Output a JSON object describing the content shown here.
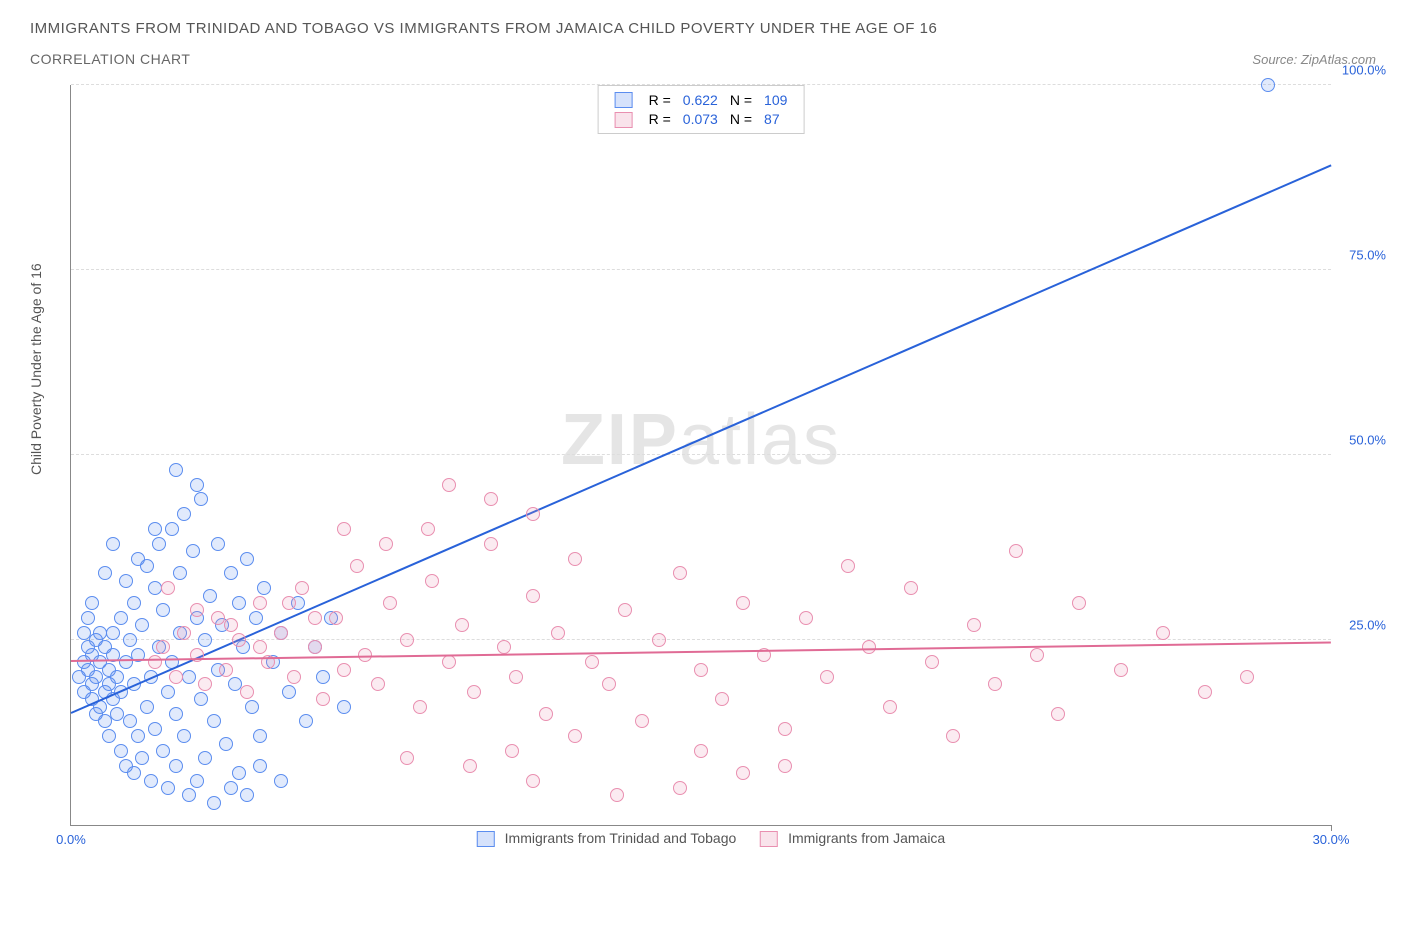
{
  "title": "IMMIGRANTS FROM TRINIDAD AND TOBAGO VS IMMIGRANTS FROM JAMAICA CHILD POVERTY UNDER THE AGE OF 16",
  "subtitle": "CORRELATION CHART",
  "source_label": "Source:",
  "source_name": "ZipAtlas.com",
  "watermark_a": "ZIP",
  "watermark_b": "atlas",
  "yaxis_title": "Child Poverty Under the Age of 16",
  "chart": {
    "type": "scatter",
    "background_color": "#ffffff",
    "grid_color": "#dddddd",
    "axis_color": "#888888",
    "xlim": [
      0,
      30
    ],
    "ylim": [
      0,
      100
    ],
    "xtick_positions": [
      0,
      30
    ],
    "xtick_labels": [
      "0.0%",
      "30.0%"
    ],
    "ytick_positions": [
      25,
      50,
      75,
      100
    ],
    "ytick_labels": [
      "25.0%",
      "50.0%",
      "75.0%",
      "100.0%"
    ],
    "ytick_color": "#2962d9",
    "xtick_color": "#2962d9",
    "marker_radius": 7,
    "marker_border_width": 1.2,
    "marker_fill_opacity": 0.18,
    "series": [
      {
        "name": "Immigrants from Trinidad and Tobago",
        "color_border": "#5b8def",
        "color_fill": "#5b8def",
        "R": "0.622",
        "N": "109",
        "trend": {
          "x1": 0,
          "y1": 15,
          "x2": 30,
          "y2": 89,
          "color": "#2962d9",
          "width": 2
        },
        "points": [
          [
            0.2,
            20
          ],
          [
            0.3,
            22
          ],
          [
            0.3,
            18
          ],
          [
            0.4,
            24
          ],
          [
            0.4,
            21
          ],
          [
            0.5,
            19
          ],
          [
            0.5,
            17
          ],
          [
            0.5,
            23
          ],
          [
            0.6,
            25
          ],
          [
            0.6,
            20
          ],
          [
            0.6,
            15
          ],
          [
            0.7,
            16
          ],
          [
            0.7,
            22
          ],
          [
            0.7,
            26
          ],
          [
            0.8,
            18
          ],
          [
            0.8,
            14
          ],
          [
            0.8,
            24
          ],
          [
            0.9,
            19
          ],
          [
            0.9,
            21
          ],
          [
            0.9,
            12
          ],
          [
            1.0,
            17
          ],
          [
            1.0,
            23
          ],
          [
            1.0,
            26
          ],
          [
            1.1,
            15
          ],
          [
            1.1,
            20
          ],
          [
            1.2,
            28
          ],
          [
            1.2,
            10
          ],
          [
            1.2,
            18
          ],
          [
            1.3,
            22
          ],
          [
            1.3,
            8
          ],
          [
            1.4,
            25
          ],
          [
            1.4,
            14
          ],
          [
            1.5,
            30
          ],
          [
            1.5,
            19
          ],
          [
            1.5,
            7
          ],
          [
            1.6,
            12
          ],
          [
            1.6,
            23
          ],
          [
            1.7,
            27
          ],
          [
            1.7,
            9
          ],
          [
            1.8,
            35
          ],
          [
            1.8,
            16
          ],
          [
            1.9,
            20
          ],
          [
            1.9,
            6
          ],
          [
            2.0,
            32
          ],
          [
            2.0,
            13
          ],
          [
            2.1,
            24
          ],
          [
            2.1,
            38
          ],
          [
            2.2,
            10
          ],
          [
            2.2,
            29
          ],
          [
            2.3,
            18
          ],
          [
            2.3,
            5
          ],
          [
            2.4,
            40
          ],
          [
            2.4,
            22
          ],
          [
            2.5,
            15
          ],
          [
            2.5,
            8
          ],
          [
            2.6,
            34
          ],
          [
            2.6,
            26
          ],
          [
            2.7,
            42
          ],
          [
            2.7,
            12
          ],
          [
            2.8,
            20
          ],
          [
            2.8,
            4
          ],
          [
            2.9,
            37
          ],
          [
            3.0,
            28
          ],
          [
            3.0,
            6
          ],
          [
            3.1,
            44
          ],
          [
            3.1,
            17
          ],
          [
            3.2,
            25
          ],
          [
            3.2,
            9
          ],
          [
            3.3,
            31
          ],
          [
            3.4,
            14
          ],
          [
            3.4,
            3
          ],
          [
            3.5,
            38
          ],
          [
            3.5,
            21
          ],
          [
            3.6,
            27
          ],
          [
            3.7,
            11
          ],
          [
            3.8,
            34
          ],
          [
            3.9,
            19
          ],
          [
            4.0,
            30
          ],
          [
            4.0,
            7
          ],
          [
            4.1,
            24
          ],
          [
            4.2,
            36
          ],
          [
            4.3,
            16
          ],
          [
            4.4,
            28
          ],
          [
            4.5,
            12
          ],
          [
            4.6,
            32
          ],
          [
            4.8,
            22
          ],
          [
            5.0,
            26
          ],
          [
            5.2,
            18
          ],
          [
            5.4,
            30
          ],
          [
            5.6,
            14
          ],
          [
            5.8,
            24
          ],
          [
            6.0,
            20
          ],
          [
            6.2,
            28
          ],
          [
            6.5,
            16
          ],
          [
            2.5,
            48
          ],
          [
            1.0,
            38
          ],
          [
            0.5,
            30
          ],
          [
            0.4,
            28
          ],
          [
            0.3,
            26
          ],
          [
            1.3,
            33
          ],
          [
            1.6,
            36
          ],
          [
            2.0,
            40
          ],
          [
            3.0,
            46
          ],
          [
            0.8,
            34
          ],
          [
            4.5,
            8
          ],
          [
            5.0,
            6
          ],
          [
            3.8,
            5
          ],
          [
            4.2,
            4
          ],
          [
            28.5,
            100
          ]
        ]
      },
      {
        "name": "Immigrants from Jamaica",
        "color_border": "#e98fb0",
        "color_fill": "#e98fb0",
        "R": "0.073",
        "N": "87",
        "trend": {
          "x1": 0,
          "y1": 22,
          "x2": 30,
          "y2": 24.5,
          "color": "#e06b95",
          "width": 2
        },
        "points": [
          [
            2.0,
            22
          ],
          [
            2.2,
            24
          ],
          [
            2.5,
            20
          ],
          [
            2.7,
            26
          ],
          [
            3.0,
            23
          ],
          [
            3.2,
            19
          ],
          [
            3.5,
            28
          ],
          [
            3.7,
            21
          ],
          [
            4.0,
            25
          ],
          [
            4.2,
            18
          ],
          [
            4.5,
            30
          ],
          [
            4.7,
            22
          ],
          [
            5.0,
            26
          ],
          [
            5.3,
            20
          ],
          [
            5.5,
            32
          ],
          [
            5.8,
            24
          ],
          [
            6.0,
            17
          ],
          [
            6.3,
            28
          ],
          [
            6.5,
            21
          ],
          [
            6.8,
            35
          ],
          [
            7.0,
            23
          ],
          [
            7.3,
            19
          ],
          [
            7.6,
            30
          ],
          [
            8.0,
            25
          ],
          [
            8.3,
            16
          ],
          [
            8.6,
            33
          ],
          [
            9.0,
            22
          ],
          [
            9.3,
            27
          ],
          [
            9.6,
            18
          ],
          [
            10.0,
            38
          ],
          [
            10.3,
            24
          ],
          [
            10.6,
            20
          ],
          [
            11.0,
            31
          ],
          [
            11.3,
            15
          ],
          [
            11.6,
            26
          ],
          [
            12.0,
            36
          ],
          [
            12.4,
            22
          ],
          [
            12.8,
            19
          ],
          [
            13.2,
            29
          ],
          [
            13.6,
            14
          ],
          [
            14.0,
            25
          ],
          [
            14.5,
            34
          ],
          [
            15.0,
            21
          ],
          [
            15.5,
            17
          ],
          [
            16.0,
            30
          ],
          [
            16.5,
            23
          ],
          [
            17.0,
            13
          ],
          [
            17.5,
            28
          ],
          [
            18.0,
            20
          ],
          [
            18.5,
            35
          ],
          [
            19.0,
            24
          ],
          [
            19.5,
            16
          ],
          [
            20.0,
            32
          ],
          [
            20.5,
            22
          ],
          [
            21.0,
            12
          ],
          [
            21.5,
            27
          ],
          [
            22.0,
            19
          ],
          [
            22.5,
            37
          ],
          [
            23.0,
            23
          ],
          [
            23.5,
            15
          ],
          [
            24.0,
            30
          ],
          [
            25.0,
            21
          ],
          [
            26.0,
            26
          ],
          [
            27.0,
            18
          ],
          [
            28.0,
            20
          ],
          [
            9.0,
            46
          ],
          [
            10.0,
            44
          ],
          [
            11.0,
            42
          ],
          [
            8.5,
            40
          ],
          [
            7.5,
            38
          ],
          [
            6.5,
            40
          ],
          [
            9.5,
            8
          ],
          [
            11.0,
            6
          ],
          [
            13.0,
            4
          ],
          [
            14.5,
            5
          ],
          [
            16.0,
            7
          ],
          [
            10.5,
            10
          ],
          [
            8.0,
            9
          ],
          [
            12.0,
            12
          ],
          [
            15.0,
            10
          ],
          [
            17.0,
            8
          ],
          [
            2.3,
            32
          ],
          [
            3.0,
            29
          ],
          [
            3.8,
            27
          ],
          [
            4.5,
            24
          ],
          [
            5.2,
            30
          ],
          [
            5.8,
            28
          ]
        ]
      }
    ],
    "legend_top": {
      "r_label": "R =",
      "n_label": "N =",
      "text_color": "#555555",
      "value_color": "#2962d9"
    }
  }
}
